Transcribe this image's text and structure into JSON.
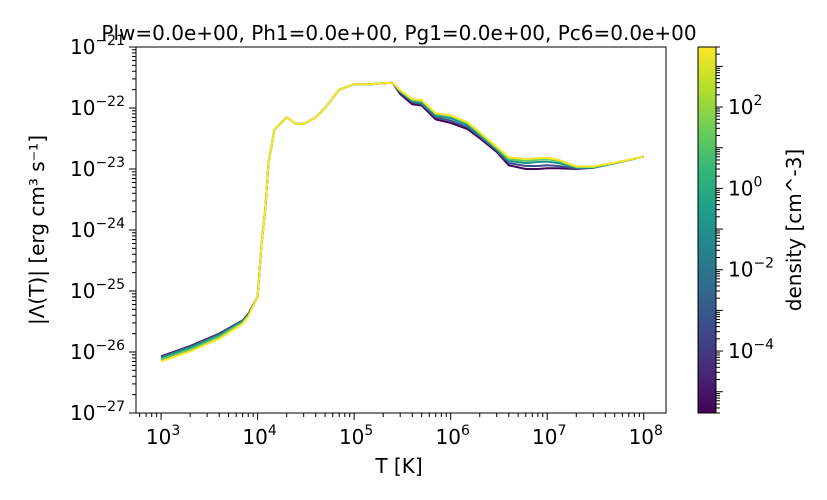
{
  "chart_data": {
    "type": "line",
    "title": "Plw=0.0e+00, Ph1=0.0e+00, Pg1=0.0e+00, Pc6=0.0e+00",
    "xlabel": "T [K]",
    "ylabel": "|Λ(T)| [erg cm³ s⁻¹]",
    "xscale": "log",
    "yscale": "log",
    "xlim": [
      550,
      170000000
    ],
    "ylim": [
      1e-27,
      1e-21
    ],
    "grid": false,
    "x_ticks": [
      {
        "value": 1000,
        "base": "10",
        "exp": "3"
      },
      {
        "value": 10000,
        "base": "10",
        "exp": "4"
      },
      {
        "value": 100000,
        "base": "10",
        "exp": "5"
      },
      {
        "value": 1000000,
        "base": "10",
        "exp": "6"
      },
      {
        "value": 10000000,
        "base": "10",
        "exp": "7"
      },
      {
        "value": 100000000,
        "base": "10",
        "exp": "8"
      }
    ],
    "y_ticks": [
      {
        "value": 1e-27,
        "base": "10",
        "exp": "−27"
      },
      {
        "value": 1e-26,
        "base": "10",
        "exp": "−26"
      },
      {
        "value": 1e-25,
        "base": "10",
        "exp": "−25"
      },
      {
        "value": 1e-24,
        "base": "10",
        "exp": "−24"
      },
      {
        "value": 1e-23,
        "base": "10",
        "exp": "−23"
      },
      {
        "value": 1e-22,
        "base": "10",
        "exp": "−22"
      },
      {
        "value": 1e-21,
        "base": "10",
        "exp": "−21"
      }
    ],
    "colorbar": {
      "label": "density [cm^-3]",
      "scale": "log",
      "range": [
        3e-06,
        3000
      ],
      "colormap": [
        "#440154",
        "#482878",
        "#3e4989",
        "#31688e",
        "#26828e",
        "#1f9e89",
        "#35b779",
        "#6ece58",
        "#b5de2b",
        "#fde725"
      ],
      "ticks": [
        {
          "value": 0.0001,
          "base": "10",
          "exp": "−4"
        },
        {
          "value": 0.01,
          "base": "10",
          "exp": "−2"
        },
        {
          "value": 1,
          "base": "10",
          "exp": "0"
        },
        {
          "value": 100,
          "base": "10",
          "exp": "2"
        }
      ]
    },
    "series": [
      {
        "density": 1e-05,
        "color": "#440154",
        "x": [
          1000,
          2000,
          4000,
          7000,
          8000,
          10000,
          11000,
          12000,
          13000,
          15000,
          20000,
          25000,
          30000,
          40000,
          50000,
          70000,
          100000,
          150000,
          200000,
          250000,
          300000,
          400000,
          500000,
          700000,
          1000000,
          1500000,
          2000000,
          3000000,
          4000000,
          6000000,
          8000000,
          10000000,
          13000000,
          20000000,
          30000000,
          50000000,
          100000000
        ],
        "y": [
          8.5e-27,
          1.25e-26,
          2e-26,
          3.3e-26,
          4.2e-26,
          8e-26,
          6e-25,
          2.2e-24,
          1.3e-23,
          4.5e-23,
          7e-23,
          5.5e-23,
          5.5e-23,
          7e-23,
          1e-22,
          2e-22,
          2.45e-22,
          2.45e-22,
          2.55e-22,
          2.6e-22,
          1.7e-22,
          1.15e-22,
          1.1e-22,
          6.5e-23,
          5.7e-23,
          4.5e-23,
          3.2e-23,
          1.9e-23,
          1.15e-23,
          1e-23,
          1e-23,
          1.03e-23,
          1.03e-23,
          1e-23,
          1.05e-23,
          1.25e-23,
          1.6e-23
        ]
      },
      {
        "density": 0.001,
        "color": "#3b528b",
        "x": [
          1000,
          2000,
          4000,
          7000,
          8000,
          10000,
          11000,
          12000,
          13000,
          15000,
          20000,
          25000,
          30000,
          40000,
          50000,
          70000,
          100000,
          150000,
          200000,
          250000,
          300000,
          400000,
          500000,
          700000,
          1000000,
          1500000,
          2000000,
          3000000,
          4000000,
          6000000,
          8000000,
          10000000,
          13000000,
          20000000,
          30000000,
          50000000,
          100000000
        ],
        "y": [
          8.3e-27,
          1.22e-26,
          1.95e-26,
          3.25e-26,
          4.1e-26,
          8e-26,
          6e-25,
          2.2e-24,
          1.3e-23,
          4.5e-23,
          7e-23,
          5.5e-23,
          5.5e-23,
          7e-23,
          1e-22,
          2e-22,
          2.45e-22,
          2.45e-22,
          2.55e-22,
          2.6e-22,
          1.8e-22,
          1.25e-22,
          1.15e-22,
          7e-23,
          6.2e-23,
          4.8e-23,
          3.4e-23,
          2e-23,
          1.25e-23,
          1.12e-23,
          1.12e-23,
          1.15e-23,
          1.12e-23,
          1.02e-23,
          1.05e-23,
          1.25e-23,
          1.6e-23
        ]
      },
      {
        "density": 0.1,
        "color": "#21918c",
        "x": [
          1000,
          2000,
          4000,
          7000,
          8000,
          10000,
          11000,
          12000,
          13000,
          15000,
          20000,
          25000,
          30000,
          40000,
          50000,
          70000,
          100000,
          150000,
          200000,
          250000,
          300000,
          400000,
          500000,
          700000,
          1000000,
          1500000,
          2000000,
          3000000,
          4000000,
          6000000,
          8000000,
          10000000,
          13000000,
          20000000,
          30000000,
          50000000,
          100000000
        ],
        "y": [
          8e-27,
          1.18e-26,
          1.88e-26,
          3.2e-26,
          4e-26,
          8e-26,
          6e-25,
          2.2e-24,
          1.3e-23,
          4.5e-23,
          7e-23,
          5.5e-23,
          5.5e-23,
          7e-23,
          1e-22,
          2e-22,
          2.45e-22,
          2.45e-22,
          2.55e-22,
          2.6e-22,
          1.85e-22,
          1.3e-22,
          1.2e-22,
          7.5e-23,
          6.8e-23,
          5.2e-23,
          3.6e-23,
          2.1e-23,
          1.35e-23,
          1.25e-23,
          1.3e-23,
          1.32e-23,
          1.25e-23,
          1.05e-23,
          1.06e-23,
          1.25e-23,
          1.6e-23
        ]
      },
      {
        "density": 10,
        "color": "#5ec962",
        "x": [
          1000,
          2000,
          4000,
          7000,
          8000,
          10000,
          11000,
          12000,
          13000,
          15000,
          20000,
          25000,
          30000,
          40000,
          50000,
          70000,
          100000,
          150000,
          200000,
          250000,
          300000,
          400000,
          500000,
          700000,
          1000000,
          1500000,
          2000000,
          3000000,
          4000000,
          6000000,
          8000000,
          10000000,
          13000000,
          20000000,
          30000000,
          50000000,
          100000000
        ],
        "y": [
          7.5e-27,
          1.1e-26,
          1.78e-26,
          3.05e-26,
          3.9e-26,
          8e-26,
          6e-25,
          2.2e-24,
          1.3e-23,
          4.5e-23,
          7e-23,
          5.5e-23,
          5.5e-23,
          7e-23,
          1e-22,
          2e-22,
          2.45e-22,
          2.45e-22,
          2.55e-22,
          2.6e-22,
          1.9e-22,
          1.35e-22,
          1.3e-22,
          8e-23,
          7.4e-23,
          5.6e-23,
          3.8e-23,
          2.2e-23,
          1.45e-23,
          1.35e-23,
          1.42e-23,
          1.45e-23,
          1.35e-23,
          1.08e-23,
          1.08e-23,
          1.26e-23,
          1.6e-23
        ]
      },
      {
        "density": 1000,
        "color": "#fde725",
        "x": [
          1000,
          2000,
          4000,
          7000,
          8000,
          10000,
          11000,
          12000,
          13000,
          15000,
          20000,
          25000,
          30000,
          40000,
          50000,
          70000,
          100000,
          150000,
          200000,
          250000,
          300000,
          400000,
          500000,
          700000,
          1000000,
          1500000,
          2000000,
          3000000,
          4000000,
          6000000,
          8000000,
          10000000,
          13000000,
          20000000,
          30000000,
          50000000,
          100000000
        ],
        "y": [
          7e-27,
          1.02e-26,
          1.65e-26,
          2.9e-26,
          3.8e-26,
          8e-26,
          6e-25,
          2.2e-24,
          1.3e-23,
          4.5e-23,
          7e-23,
          5.5e-23,
          5.5e-23,
          7e-23,
          1e-22,
          2e-22,
          2.45e-22,
          2.45e-22,
          2.55e-22,
          2.6e-22,
          1.95e-22,
          1.4e-22,
          1.35e-22,
          8.2e-23,
          7.6e-23,
          5.8e-23,
          4e-23,
          2.3e-23,
          1.55e-23,
          1.45e-23,
          1.5e-23,
          1.52e-23,
          1.42e-23,
          1.1e-23,
          1.1e-23,
          1.27e-23,
          1.6e-23
        ]
      }
    ]
  }
}
